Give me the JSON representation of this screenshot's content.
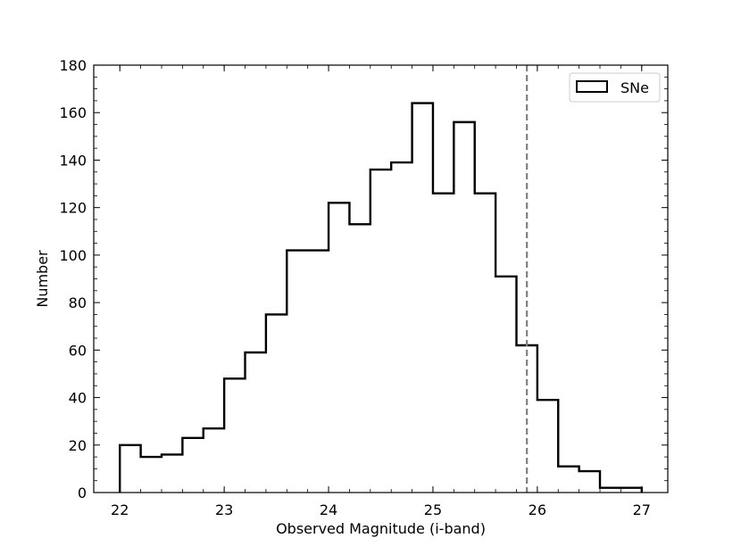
{
  "chart_data": {
    "type": "histogram",
    "xlabel": "Observed Magnitude (i-band)",
    "ylabel": "Number",
    "xlim": [
      21.75,
      27.25
    ],
    "ylim": [
      0,
      180
    ],
    "x_ticks": [
      22,
      23,
      24,
      25,
      26,
      27
    ],
    "y_ticks": [
      0,
      20,
      40,
      60,
      80,
      100,
      120,
      140,
      160,
      180
    ],
    "x_tick_labels": [
      "22",
      "23",
      "24",
      "25",
      "26",
      "27"
    ],
    "y_tick_labels": [
      "0",
      "20",
      "40",
      "60",
      "80",
      "100",
      "120",
      "140",
      "160",
      "180"
    ],
    "bin_edges": [
      22.0,
      22.2,
      22.4,
      22.6,
      22.8,
      23.0,
      23.2,
      23.4,
      23.6,
      23.8,
      24.0,
      24.2,
      24.4,
      24.6,
      24.8,
      25.0,
      25.2,
      25.4,
      25.6,
      25.8,
      26.0,
      26.2,
      26.4,
      26.6,
      26.8,
      27.0
    ],
    "series": [
      {
        "name": "SNe",
        "values": [
          20,
          15,
          16,
          23,
          27,
          48,
          59,
          75,
          102,
          102,
          122,
          113,
          136,
          139,
          164,
          126,
          156,
          126,
          91,
          62,
          39,
          11,
          9,
          2,
          2
        ],
        "style": "step",
        "color": "#000000"
      }
    ],
    "vline": {
      "x": 25.9,
      "color": "#808080",
      "style": "dashed"
    },
    "legend": {
      "position": "top-right",
      "entries": [
        "SNe"
      ]
    },
    "grid": false
  }
}
